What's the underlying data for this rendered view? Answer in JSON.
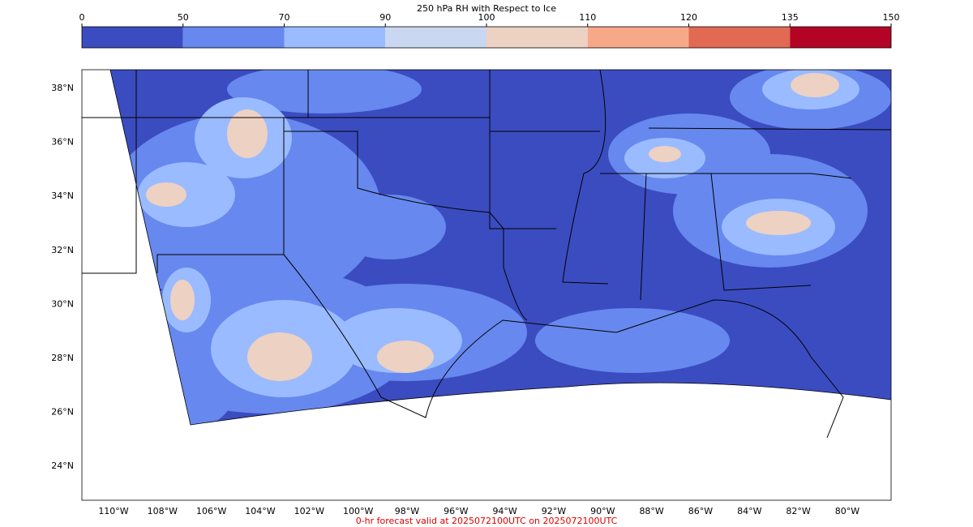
{
  "colorbar": {
    "title": "250 hPa RH with Respect to Ice",
    "ticks": [
      0,
      50,
      70,
      90,
      100,
      110,
      120,
      135,
      150
    ],
    "colors": [
      "#3b4cc0",
      "#6788ee",
      "#9abbff",
      "#c9d7f0",
      "#edd1c2",
      "#f7a889",
      "#e26952",
      "#b40426"
    ]
  },
  "map": {
    "lat_labels": [
      "38°N",
      "36°N",
      "34°N",
      "32°N",
      "30°N",
      "28°N",
      "26°N",
      "24°N"
    ],
    "lon_labels": [
      "110°W",
      "108°W",
      "106°W",
      "104°W",
      "102°W",
      "100°W",
      "98°W",
      "96°W",
      "94°W",
      "92°W",
      "90°W",
      "88°W",
      "86°W",
      "84°W",
      "82°W",
      "80°W"
    ]
  },
  "footer": "0-hr forecast valid at 2025072100UTC on 2025072100UTC"
}
